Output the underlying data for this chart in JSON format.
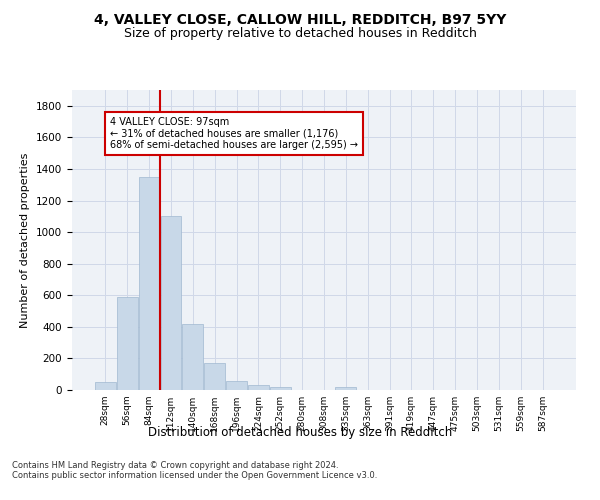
{
  "title1": "4, VALLEY CLOSE, CALLOW HILL, REDDITCH, B97 5YY",
  "title2": "Size of property relative to detached houses in Redditch",
  "xlabel": "Distribution of detached houses by size in Redditch",
  "ylabel": "Number of detached properties",
  "footnote": "Contains HM Land Registry data © Crown copyright and database right 2024.\nContains public sector information licensed under the Open Government Licence v3.0.",
  "categories": [
    "28sqm",
    "56sqm",
    "84sqm",
    "112sqm",
    "140sqm",
    "168sqm",
    "196sqm",
    "224sqm",
    "252sqm",
    "280sqm",
    "308sqm",
    "335sqm",
    "363sqm",
    "391sqm",
    "419sqm",
    "447sqm",
    "475sqm",
    "503sqm",
    "531sqm",
    "559sqm",
    "587sqm"
  ],
  "values": [
    50,
    590,
    1350,
    1100,
    420,
    170,
    55,
    30,
    20,
    0,
    0,
    20,
    0,
    0,
    0,
    0,
    0,
    0,
    0,
    0,
    0
  ],
  "bar_color": "#c8d8e8",
  "bar_edge_color": "#a0b8d0",
  "red_line_x": 2.5,
  "annotation_text": "4 VALLEY CLOSE: 97sqm\n← 31% of detached houses are smaller (1,176)\n68% of semi-detached houses are larger (2,595) →",
  "annotation_box_color": "#ffffff",
  "annotation_box_edge": "#cc0000",
  "red_line_color": "#cc0000",
  "ylim": [
    0,
    1900
  ],
  "yticks": [
    0,
    200,
    400,
    600,
    800,
    1000,
    1200,
    1400,
    1600,
    1800
  ],
  "grid_color": "#d0d8e8",
  "background_color": "#eef2f7",
  "title1_fontsize": 10,
  "title2_fontsize": 9,
  "xlabel_fontsize": 8.5,
  "ylabel_fontsize": 8
}
